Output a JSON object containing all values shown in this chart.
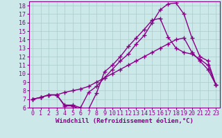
{
  "background_color": "#cce8e8",
  "grid_color": "#aacccc",
  "line_color": "#880088",
  "marker": "+",
  "markersize": 4,
  "linewidth": 1.0,
  "xlabel": "Windchill (Refroidissement éolien,°C)",
  "xlabel_fontsize": 6.5,
  "tick_fontsize": 6.0,
  "xlim": [
    -0.5,
    23.5
  ],
  "ylim": [
    6,
    18.5
  ],
  "yticks": [
    6,
    7,
    8,
    9,
    10,
    11,
    12,
    13,
    14,
    15,
    16,
    17,
    18
  ],
  "xticks": [
    0,
    1,
    2,
    3,
    4,
    5,
    6,
    7,
    8,
    9,
    10,
    11,
    12,
    13,
    14,
    15,
    16,
    17,
    18,
    19,
    20,
    21,
    22,
    23
  ],
  "series": [
    [
      7.0,
      7.2,
      7.5,
      7.5,
      6.2,
      6.2,
      5.8,
      5.8,
      7.7,
      10.2,
      11.0,
      12.0,
      13.2,
      14.2,
      15.2,
      16.3,
      16.5,
      14.3,
      13.0,
      12.5,
      12.3,
      11.7,
      11.0,
      8.7
    ],
    [
      7.0,
      7.2,
      7.5,
      7.5,
      6.3,
      6.3,
      6.0,
      7.8,
      8.5,
      9.5,
      10.5,
      11.5,
      12.3,
      13.5,
      14.5,
      16.0,
      17.5,
      18.2,
      18.3,
      17.0,
      14.2,
      12.0,
      11.5,
      8.7
    ],
    [
      7.0,
      7.2,
      7.5,
      7.5,
      7.8,
      8.0,
      8.2,
      8.5,
      9.0,
      9.5,
      10.0,
      10.5,
      11.0,
      11.5,
      12.0,
      12.5,
      13.0,
      13.5,
      14.0,
      14.2,
      12.5,
      11.5,
      10.5,
      8.7
    ]
  ]
}
